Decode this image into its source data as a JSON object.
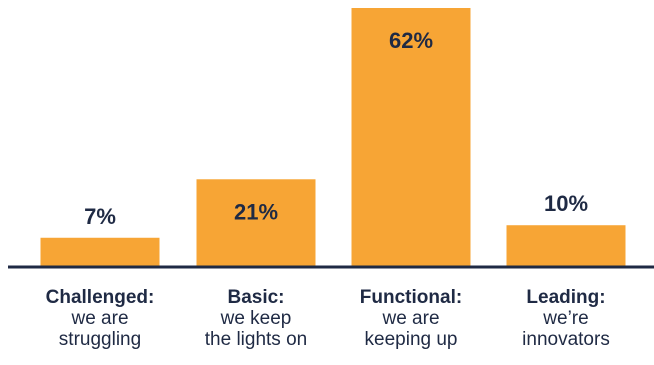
{
  "chart_data": {
    "type": "bar",
    "categories": [
      {
        "title": "Challenged:",
        "lines": [
          "we are",
          "struggling"
        ]
      },
      {
        "title": "Basic:",
        "lines": [
          "we keep",
          "the lights on"
        ]
      },
      {
        "title": "Functional:",
        "lines": [
          "we are",
          "keeping up"
        ]
      },
      {
        "title": "Leading:",
        "lines": [
          "we’re",
          "innovators"
        ]
      }
    ],
    "values": [
      7,
      21,
      62,
      10
    ],
    "value_labels": [
      "7%",
      "21%",
      "62%",
      "10%"
    ],
    "title": "",
    "xlabel": "",
    "ylabel": "",
    "ylim": [
      0,
      62
    ],
    "grid": false,
    "legend": "none",
    "unit": "%"
  },
  "colors": {
    "bar": "#f7a535",
    "axis": "#1f2a44",
    "text": "#1f2a44"
  }
}
